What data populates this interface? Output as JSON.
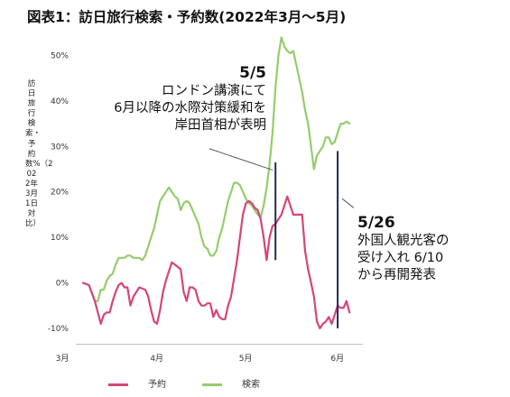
{
  "chart_data": {
    "type": "line",
    "title": "図表1：訪日旅行検索・予約数(2022年3月～5月)",
    "ylabel": "訪日旅行検索・予約数%（2022年3月1日対比）",
    "ylim": [
      -14,
      55
    ],
    "yticks": [
      "50%",
      "40%",
      "30%",
      "20%",
      "10%",
      "0%",
      "-10%"
    ],
    "ytick_values": [
      50,
      40,
      30,
      20,
      10,
      0,
      -10
    ],
    "xticks": [
      "3月",
      "4月",
      "5月",
      "6月"
    ],
    "xtick_days": [
      0,
      31,
      61,
      92
    ],
    "legend_position": "bottom",
    "series": [
      {
        "name": "予約",
        "color": "#d6447a",
        "points": [
          [
            0,
            0
          ],
          [
            2,
            -0.5
          ],
          [
            4,
            -4
          ],
          [
            6,
            -9
          ],
          [
            7,
            -7
          ],
          [
            8,
            -6.5
          ],
          [
            9,
            -6.5
          ],
          [
            10,
            -4
          ],
          [
            11,
            -2
          ],
          [
            12,
            -0.5
          ],
          [
            13,
            0
          ],
          [
            14,
            -1
          ],
          [
            15,
            -1
          ],
          [
            16,
            -5
          ],
          [
            17,
            -3
          ],
          [
            18,
            -2
          ],
          [
            19,
            -1
          ],
          [
            21,
            -1.5
          ],
          [
            22,
            -3
          ],
          [
            23,
            -6
          ],
          [
            24,
            -8.5
          ],
          [
            25,
            -9
          ],
          [
            26,
            -6
          ],
          [
            27,
            -2
          ],
          [
            28,
            0.5
          ],
          [
            29,
            2.5
          ],
          [
            30,
            4.5
          ],
          [
            31,
            4
          ],
          [
            32,
            3.5
          ],
          [
            33,
            3
          ],
          [
            34,
            -2
          ],
          [
            35,
            -4
          ],
          [
            36,
            -1
          ],
          [
            37,
            -1
          ],
          [
            38,
            -1.5
          ],
          [
            39,
            -4
          ],
          [
            40,
            -5
          ],
          [
            41,
            -5
          ],
          [
            42,
            -4.5
          ],
          [
            43,
            -4.5
          ],
          [
            44,
            -7.5
          ],
          [
            45,
            -6
          ],
          [
            46,
            -7.5
          ],
          [
            47,
            -8
          ],
          [
            48,
            -8
          ],
          [
            49,
            -5
          ],
          [
            50,
            -3
          ],
          [
            51,
            1
          ],
          [
            52,
            5
          ],
          [
            53,
            10
          ],
          [
            54,
            15
          ],
          [
            55,
            17.5
          ],
          [
            56,
            18
          ],
          [
            57,
            17.5
          ],
          [
            58,
            16.5
          ],
          [
            59,
            16
          ],
          [
            60,
            14
          ],
          [
            61,
            10
          ],
          [
            62,
            5
          ],
          [
            63,
            10
          ],
          [
            64,
            12.5
          ],
          [
            65,
            13
          ],
          [
            66,
            14
          ],
          [
            67,
            15
          ],
          [
            68,
            17
          ],
          [
            69,
            19
          ],
          [
            70,
            17
          ],
          [
            71,
            15
          ],
          [
            72,
            15
          ],
          [
            73,
            15
          ],
          [
            74,
            15
          ],
          [
            75,
            7
          ],
          [
            76,
            3
          ],
          [
            77,
            0
          ],
          [
            78,
            -3
          ],
          [
            79,
            -8.5
          ],
          [
            80,
            -10
          ],
          [
            81,
            -9
          ],
          [
            82,
            -8.5
          ],
          [
            83,
            -7.5
          ],
          [
            84,
            -9
          ],
          [
            85,
            -7
          ],
          [
            86,
            -5
          ],
          [
            87,
            -5.5
          ],
          [
            88,
            -5.5
          ],
          [
            89,
            -4
          ],
          [
            90,
            -6.5
          ]
        ]
      },
      {
        "name": "検索",
        "color": "#93cd6d",
        "points": [
          [
            0,
            0
          ],
          [
            2,
            -0.5
          ],
          [
            4,
            -4
          ],
          [
            5,
            -4
          ],
          [
            6,
            -1.5
          ],
          [
            7,
            -1.5
          ],
          [
            8,
            0.5
          ],
          [
            9,
            1.5
          ],
          [
            10,
            2
          ],
          [
            11,
            4
          ],
          [
            12,
            5.5
          ],
          [
            13,
            5.5
          ],
          [
            14,
            5.5
          ],
          [
            15,
            6
          ],
          [
            16,
            6
          ],
          [
            17,
            5.5
          ],
          [
            18,
            5.5
          ],
          [
            19,
            5.5
          ],
          [
            20,
            5
          ],
          [
            21,
            6
          ],
          [
            22,
            8
          ],
          [
            23,
            10
          ],
          [
            24,
            12
          ],
          [
            25,
            15
          ],
          [
            26,
            18
          ],
          [
            27,
            19
          ],
          [
            28,
            20
          ],
          [
            29,
            21
          ],
          [
            30,
            20
          ],
          [
            31,
            19
          ],
          [
            32,
            18.5
          ],
          [
            33,
            16
          ],
          [
            34,
            17.5
          ],
          [
            35,
            18
          ],
          [
            36,
            17.5
          ],
          [
            37,
            16
          ],
          [
            38,
            14.5
          ],
          [
            39,
            13
          ],
          [
            40,
            10
          ],
          [
            41,
            8
          ],
          [
            42,
            7.5
          ],
          [
            43,
            6
          ],
          [
            44,
            6
          ],
          [
            45,
            7
          ],
          [
            46,
            10
          ],
          [
            47,
            12
          ],
          [
            48,
            15
          ],
          [
            49,
            18
          ],
          [
            50,
            20
          ],
          [
            51,
            22
          ],
          [
            52,
            22
          ],
          [
            53,
            21.5
          ],
          [
            54,
            20
          ],
          [
            55,
            18.5
          ],
          [
            56,
            17.5
          ],
          [
            57,
            17
          ],
          [
            58,
            16
          ],
          [
            59,
            15
          ],
          [
            60,
            14.5
          ],
          [
            61,
            17
          ],
          [
            62,
            21
          ],
          [
            63,
            26
          ],
          [
            64,
            33
          ],
          [
            65,
            43
          ],
          [
            66,
            50
          ],
          [
            67,
            54
          ],
          [
            68,
            52
          ],
          [
            69,
            51
          ],
          [
            70,
            50.5
          ],
          [
            71,
            51
          ],
          [
            72,
            48
          ],
          [
            73,
            45
          ],
          [
            74,
            42
          ],
          [
            75,
            38
          ],
          [
            76,
            35
          ],
          [
            77,
            30
          ],
          [
            78,
            25
          ],
          [
            79,
            28
          ],
          [
            80,
            29
          ],
          [
            81,
            30
          ],
          [
            82,
            32
          ],
          [
            83,
            32
          ],
          [
            84,
            30.5
          ],
          [
            85,
            31
          ],
          [
            86,
            33
          ],
          [
            87,
            35
          ],
          [
            88,
            35
          ],
          [
            89,
            35.5
          ],
          [
            90,
            35
          ]
        ]
      }
    ],
    "annotations": [
      {
        "date": "5/5",
        "day": 65,
        "lines": [
          "ロンドン講演にて",
          "6月以降の水際対策緩和を",
          "岸田首相が表明"
        ]
      },
      {
        "date": "5/26",
        "day": 86,
        "lines": [
          "外国人観光客の",
          "受け入れ 6/10",
          "から再開発表"
        ]
      }
    ]
  }
}
